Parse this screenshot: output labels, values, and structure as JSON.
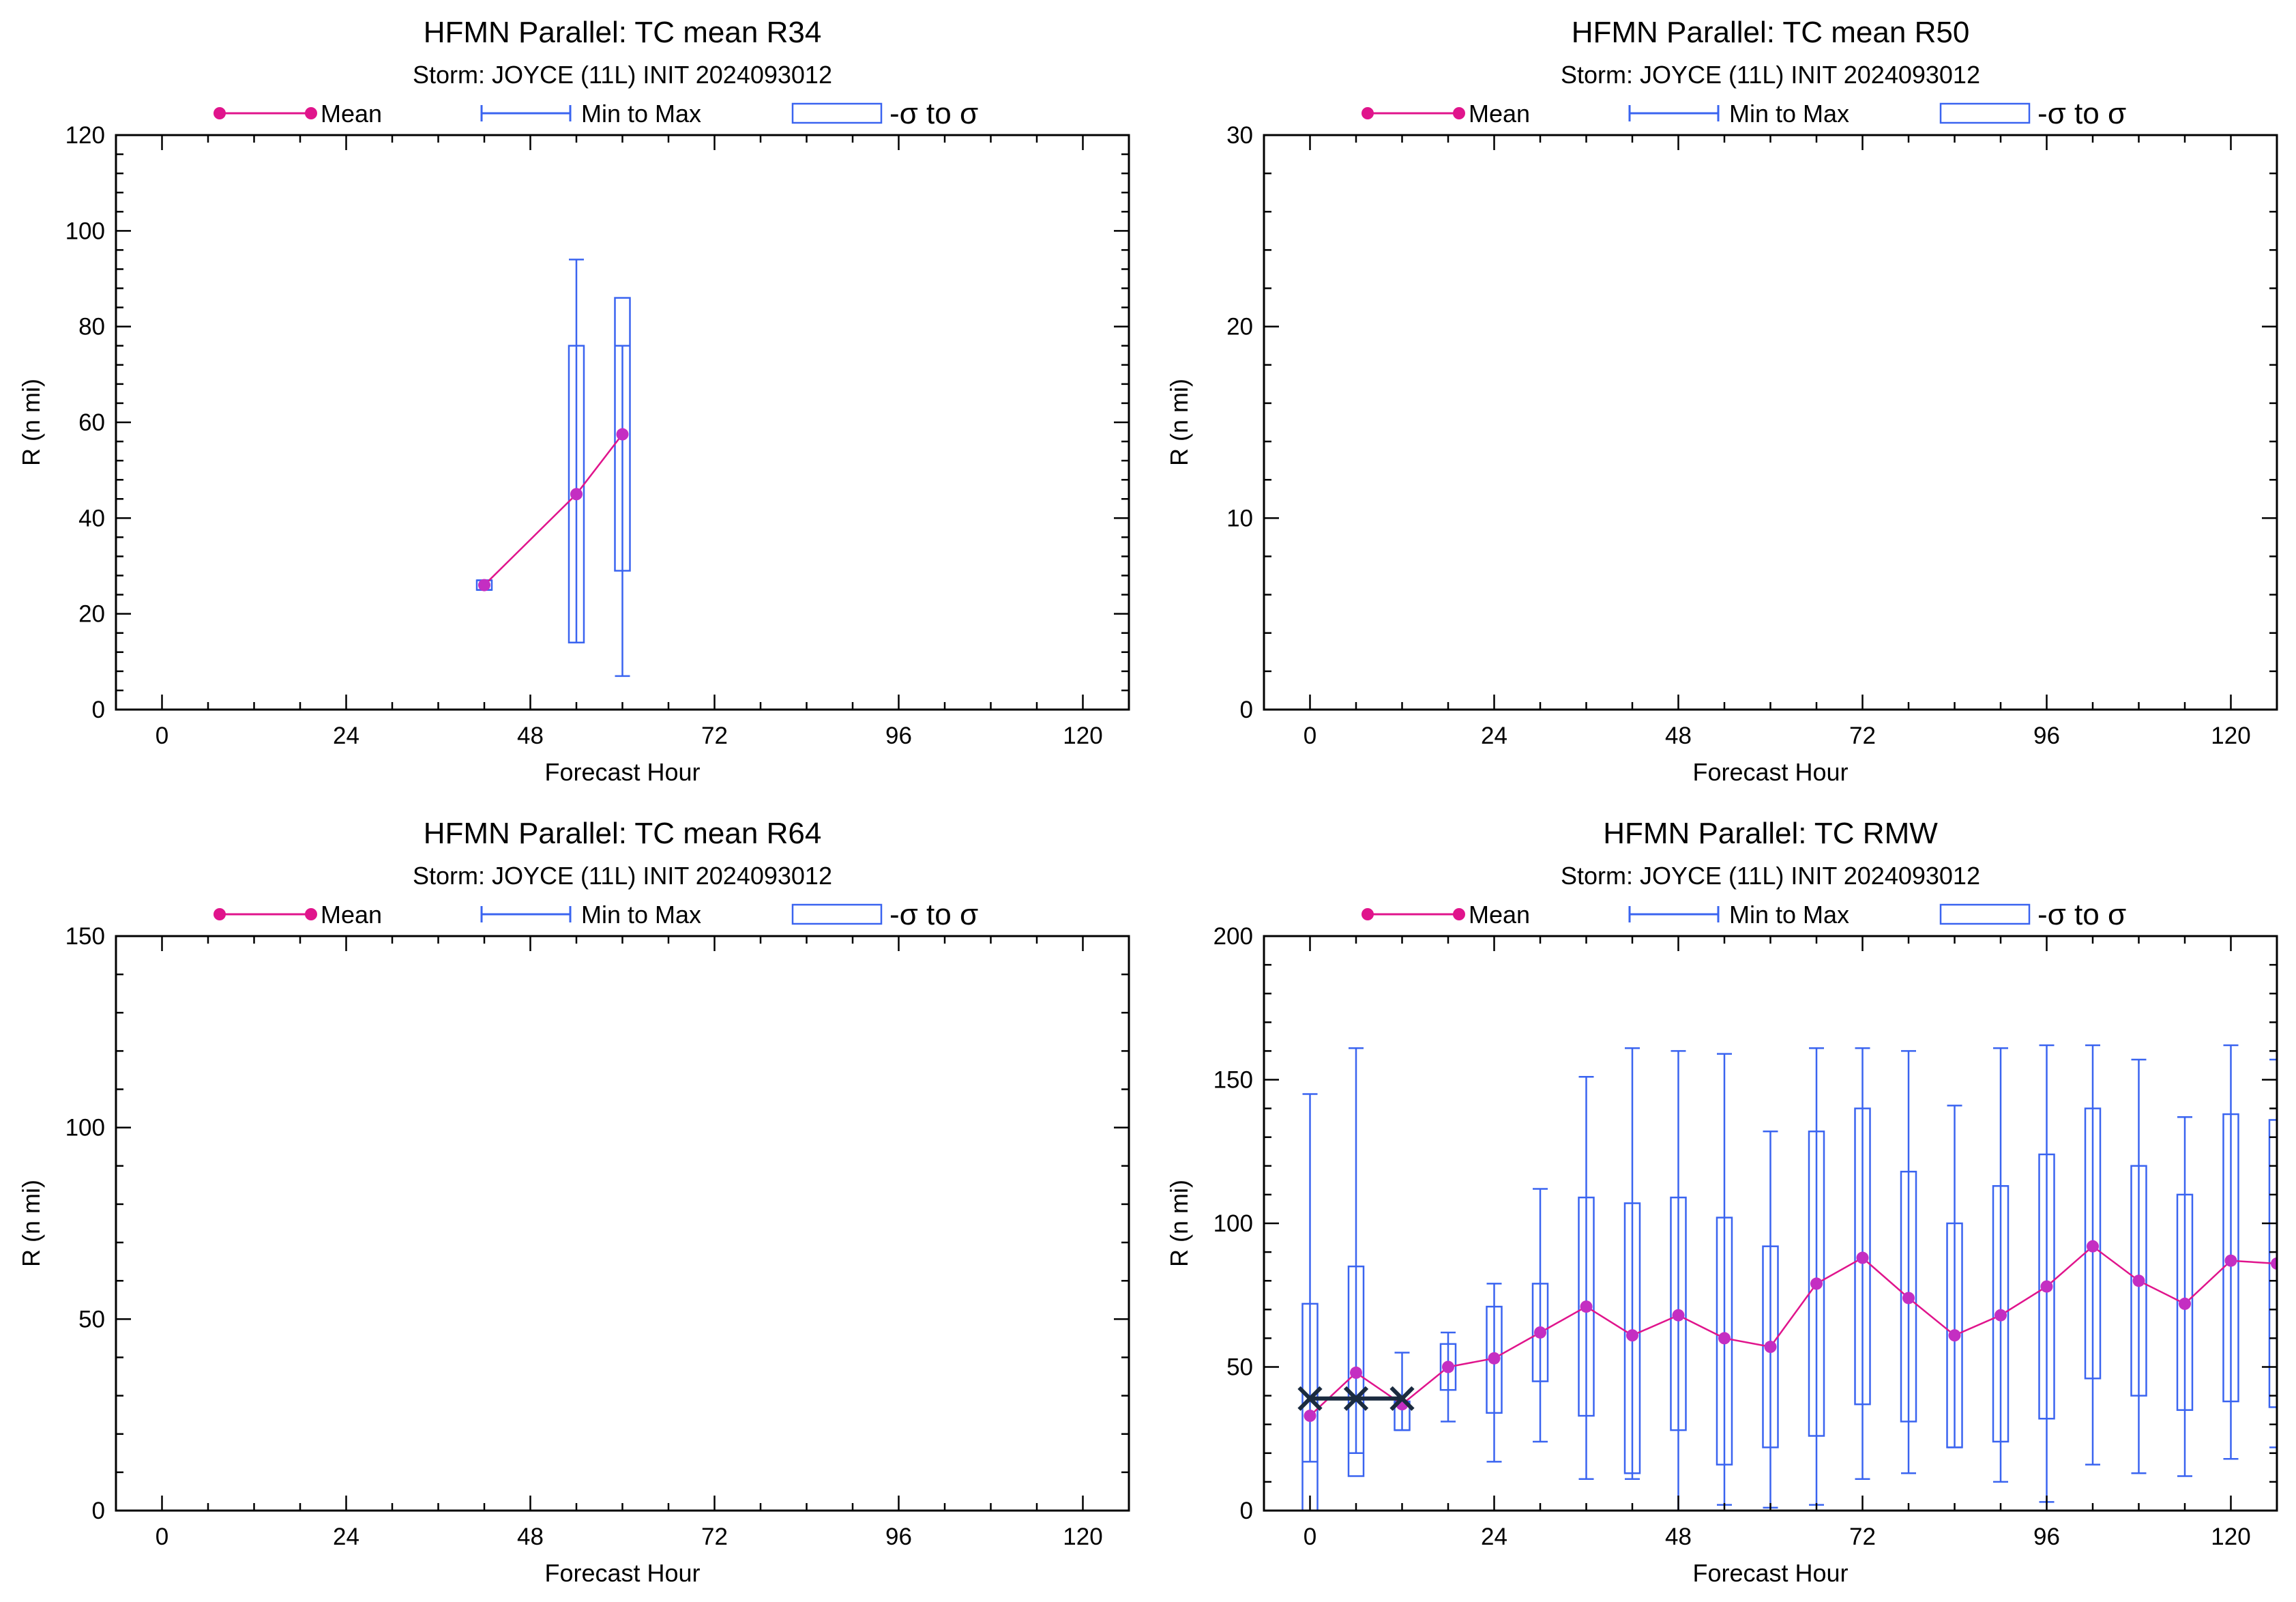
{
  "legend": {
    "mean_label": "Mean",
    "minmax_label": "Min to Max",
    "sigma_label": "-σ to σ"
  },
  "colors": {
    "mean": "#e0148c",
    "mean_dot": "#c42ec2",
    "box": "#3a64f0",
    "obs": "#1b2b3f",
    "frame": "#000000"
  },
  "chart_data": [
    {
      "type": "box",
      "title": "HFMN Parallel: TC mean R34",
      "subtitle": "Storm: JOYCE (11L) INIT 2024093012",
      "xlabel": "Forecast Hour",
      "ylabel": "R (n mi)",
      "xlim": [
        -6,
        126
      ],
      "ylim": [
        0,
        120
      ],
      "xticks": [
        "0",
        "24",
        "48",
        "72",
        "96",
        "120"
      ],
      "xtick_values": [
        0,
        24,
        48,
        72,
        96,
        120
      ],
      "yticks": [
        "0",
        "20",
        "40",
        "60",
        "80",
        "100",
        "120"
      ],
      "ytick_values": [
        0,
        20,
        40,
        60,
        80,
        100,
        120
      ],
      "grid": false,
      "legend_position": "top",
      "points": [
        {
          "x": 42,
          "mean": 26,
          "min": 25,
          "max": 27,
          "sd_low": 25,
          "sd_high": 27
        },
        {
          "x": 54,
          "mean": 45,
          "min": 14,
          "max": 94,
          "sd_low": 14,
          "sd_high": 76
        },
        {
          "x": 60,
          "mean": 57.5,
          "min": 7,
          "max": 76,
          "sd_low": 29,
          "sd_high": 86
        }
      ],
      "observed": []
    },
    {
      "type": "box",
      "title": "HFMN Parallel: TC mean R50",
      "subtitle": "Storm: JOYCE (11L) INIT 2024093012",
      "xlabel": "Forecast Hour",
      "ylabel": "R (n mi)",
      "xlim": [
        -6,
        126
      ],
      "ylim": [
        0,
        30
      ],
      "xticks": [
        "0",
        "24",
        "48",
        "72",
        "96",
        "120"
      ],
      "xtick_values": [
        0,
        24,
        48,
        72,
        96,
        120
      ],
      "yticks": [
        "0",
        "10",
        "20",
        "30"
      ],
      "ytick_values": [
        0,
        10,
        20,
        30
      ],
      "grid": false,
      "legend_position": "top",
      "points": [],
      "observed": []
    },
    {
      "type": "box",
      "title": "HFMN Parallel: TC mean R64",
      "subtitle": "Storm: JOYCE (11L) INIT 2024093012",
      "xlabel": "Forecast Hour",
      "ylabel": "R (n mi)",
      "xlim": [
        -6,
        126
      ],
      "ylim": [
        0,
        150
      ],
      "xticks": [
        "0",
        "24",
        "48",
        "72",
        "96",
        "120"
      ],
      "xtick_values": [
        0,
        24,
        48,
        72,
        96,
        120
      ],
      "yticks": [
        "0",
        "50",
        "100",
        "150"
      ],
      "ytick_values": [
        0,
        50,
        100,
        150
      ],
      "grid": false,
      "legend_position": "top",
      "points": [],
      "observed": []
    },
    {
      "type": "box",
      "title": "HFMN Parallel: TC RMW",
      "subtitle": "Storm: JOYCE (11L) INIT 2024093012",
      "xlabel": "Forecast Hour",
      "ylabel": "R (n mi)",
      "xlim": [
        -6,
        126
      ],
      "ylim": [
        0,
        200
      ],
      "xticks": [
        "0",
        "24",
        "48",
        "72",
        "96",
        "120"
      ],
      "xtick_values": [
        0,
        24,
        48,
        72,
        96,
        120
      ],
      "yticks": [
        "0",
        "50",
        "100",
        "150",
        "200"
      ],
      "ytick_values": [
        0,
        50,
        100,
        150,
        200
      ],
      "grid": false,
      "legend_position": "top",
      "points": [
        {
          "x": 0,
          "mean": 33,
          "min": 17,
          "max": 145,
          "sd_low": -7,
          "sd_high": 72
        },
        {
          "x": 6,
          "mean": 48,
          "min": 20,
          "max": 161,
          "sd_low": 12,
          "sd_high": 85
        },
        {
          "x": 12,
          "mean": 37,
          "min": 28,
          "max": 55,
          "sd_low": 28,
          "sd_high": 38
        },
        {
          "x": 18,
          "mean": 50,
          "min": 31,
          "max": 62,
          "sd_low": 42,
          "sd_high": 58
        },
        {
          "x": 24,
          "mean": 53,
          "min": 17,
          "max": 79,
          "sd_low": 34,
          "sd_high": 71
        },
        {
          "x": 30,
          "mean": 62,
          "min": 24,
          "max": 112,
          "sd_low": 45,
          "sd_high": 79
        },
        {
          "x": 36,
          "mean": 71,
          "min": 11,
          "max": 151,
          "sd_low": 33,
          "sd_high": 109
        },
        {
          "x": 42,
          "mean": 61,
          "min": 11,
          "max": 161,
          "sd_low": 13,
          "sd_high": 107
        },
        {
          "x": 48,
          "mean": 68,
          "min": 0,
          "max": 160,
          "sd_low": 28,
          "sd_high": 109
        },
        {
          "x": 54,
          "mean": 60,
          "min": 2,
          "max": 159,
          "sd_low": 16,
          "sd_high": 102
        },
        {
          "x": 60,
          "mean": 57,
          "min": 1,
          "max": 132,
          "sd_low": 22,
          "sd_high": 92
        },
        {
          "x": 66,
          "mean": 79,
          "min": 2,
          "max": 161,
          "sd_low": 26,
          "sd_high": 132
        },
        {
          "x": 72,
          "mean": 88,
          "min": 11,
          "max": 161,
          "sd_low": 37,
          "sd_high": 140
        },
        {
          "x": 78,
          "mean": 74,
          "min": 13,
          "max": 160,
          "sd_low": 31,
          "sd_high": 118
        },
        {
          "x": 84,
          "mean": 61,
          "min": 22,
          "max": 141,
          "sd_low": 22,
          "sd_high": 100
        },
        {
          "x": 90,
          "mean": 68,
          "min": 10,
          "max": 161,
          "sd_low": 24,
          "sd_high": 113
        },
        {
          "x": 96,
          "mean": 78,
          "min": 3,
          "max": 162,
          "sd_low": 32,
          "sd_high": 124
        },
        {
          "x": 102,
          "mean": 92,
          "min": 16,
          "max": 162,
          "sd_low": 46,
          "sd_high": 140
        },
        {
          "x": 108,
          "mean": 80,
          "min": 13,
          "max": 157,
          "sd_low": 40,
          "sd_high": 120
        },
        {
          "x": 114,
          "mean": 72,
          "min": 12,
          "max": 137,
          "sd_low": 35,
          "sd_high": 110
        },
        {
          "x": 120,
          "mean": 87,
          "min": 18,
          "max": 162,
          "sd_low": 38,
          "sd_high": 138
        },
        {
          "x": 126,
          "mean": 86,
          "min": 22,
          "max": 157,
          "sd_low": 36,
          "sd_high": 136
        }
      ],
      "observed": [
        {
          "x": 0,
          "y": 39
        },
        {
          "x": 6,
          "y": 39
        },
        {
          "x": 12,
          "y": 39
        }
      ]
    }
  ]
}
